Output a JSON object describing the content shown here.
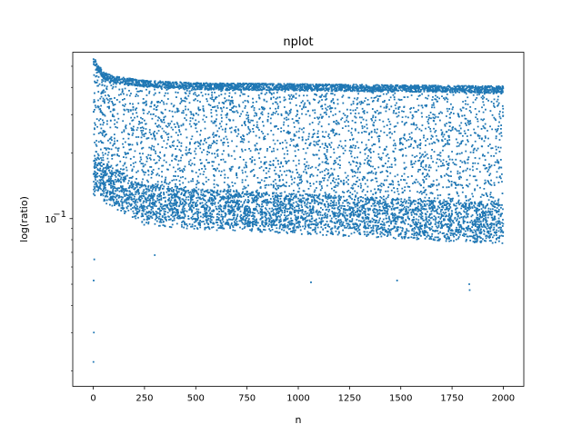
{
  "chart_data": {
    "type": "scatter",
    "title": "nplot",
    "xlabel": "n",
    "ylabel": "log(ratio)",
    "xlim": [
      -100,
      2100
    ],
    "ylim": [
      0.017,
      0.58
    ],
    "yscale": "log",
    "x_ticks": [
      0,
      250,
      500,
      750,
      1000,
      1250,
      1500,
      1750,
      2000
    ],
    "y_ticks": [
      {
        "value": 0.1,
        "base": "10",
        "exp": "−1"
      }
    ],
    "y_minor_ticks": [
      0.02,
      0.03,
      0.04,
      0.05,
      0.06,
      0.07,
      0.08,
      0.09,
      0.2,
      0.3,
      0.4,
      0.5
    ],
    "grid": false,
    "legend": "none",
    "point_color": "#1f77b4",
    "n_range": [
      1,
      2000
    ],
    "upper_envelope": [
      {
        "n": 1,
        "y": 0.55
      },
      {
        "n": 50,
        "y": 0.47
      },
      {
        "n": 100,
        "y": 0.45
      },
      {
        "n": 250,
        "y": 0.43
      },
      {
        "n": 500,
        "y": 0.42
      },
      {
        "n": 1000,
        "y": 0.415
      },
      {
        "n": 1500,
        "y": 0.41
      },
      {
        "n": 2000,
        "y": 0.405
      }
    ],
    "dense_lower_band": [
      {
        "n": 50,
        "y": 0.14
      },
      {
        "n": 250,
        "y": 0.11
      },
      {
        "n": 500,
        "y": 0.105
      },
      {
        "n": 1000,
        "y": 0.1
      },
      {
        "n": 1500,
        "y": 0.095
      },
      {
        "n": 2000,
        "y": 0.09
      }
    ],
    "outliers": [
      {
        "n": 1,
        "y": 0.022
      },
      {
        "n": 3,
        "y": 0.03
      },
      {
        "n": 2,
        "y": 0.052
      },
      {
        "n": 5,
        "y": 0.065
      },
      {
        "n": 1062,
        "y": 0.051
      },
      {
        "n": 1482,
        "y": 0.052
      },
      {
        "n": 1836,
        "y": 0.047
      },
      {
        "n": 1834,
        "y": 0.05
      },
      {
        "n": 300,
        "y": 0.068
      }
    ]
  }
}
